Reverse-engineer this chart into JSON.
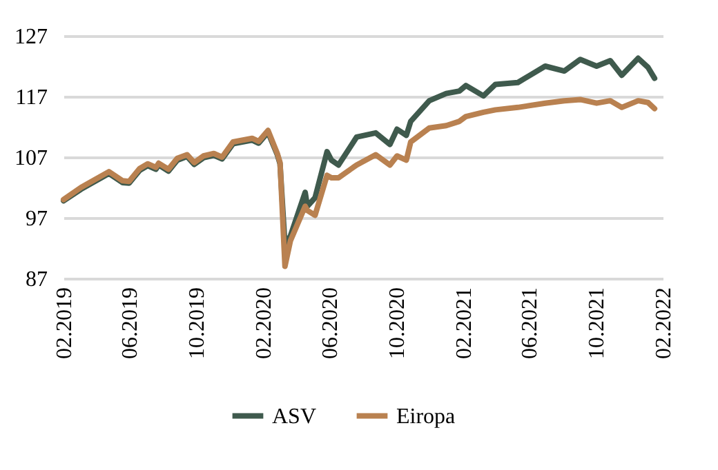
{
  "chart_data": {
    "type": "line",
    "x": [
      "2019-02-01",
      "2019-03-05",
      "2019-04-25",
      "2019-05-20",
      "2019-06-01",
      "2019-06-20",
      "2019-07-05",
      "2019-07-20",
      "2019-07-25",
      "2019-08-12",
      "2019-08-28",
      "2019-09-15",
      "2019-09-28",
      "2019-10-15",
      "2019-11-03",
      "2019-11-18",
      "2019-12-08",
      "2020-01-12",
      "2020-01-24",
      "2020-02-10",
      "2020-02-27",
      "2020-03-03",
      "2020-03-12",
      "2020-03-22",
      "2020-04-18",
      "2020-04-22",
      "2020-05-06",
      "2020-05-28",
      "2020-06-05",
      "2020-06-18",
      "2020-07-21",
      "2020-08-25",
      "2020-09-20",
      "2020-10-03",
      "2020-10-20",
      "2020-10-28",
      "2020-12-01",
      "2021-01-01",
      "2021-01-25",
      "2021-02-06",
      "2021-03-10",
      "2021-04-01",
      "2021-05-12",
      "2021-07-01",
      "2021-08-05",
      "2021-09-03",
      "2021-10-03",
      "2021-10-28",
      "2021-11-18",
      "2021-12-18",
      "2022-01-05",
      "2022-01-17"
    ],
    "series": [
      {
        "name": "ASV",
        "color": "#3f5a4d",
        "values": [
          99.8,
          101.7,
          104.3,
          102.8,
          102.7,
          104.8,
          105.6,
          105.0,
          105.7,
          104.7,
          106.5,
          107.1,
          105.8,
          106.9,
          107.3,
          106.7,
          109.2,
          109.8,
          109.3,
          111.1,
          107.4,
          105.9,
          92.5,
          94,
          101.2,
          98.9,
          100.3,
          107.9,
          106.5,
          105.7,
          110.3,
          111.0,
          109.1,
          111.6,
          110.6,
          112.9,
          116.3,
          117.5,
          117.9,
          118.8,
          117.1,
          119,
          119.3,
          122,
          121.2,
          123.1,
          122,
          122.9,
          120.5,
          123.3,
          121.8,
          120
        ]
      },
      {
        "name": "Eiropa",
        "color": "#b98150",
        "values": [
          100,
          102,
          104.6,
          103.1,
          103,
          105.1,
          105.9,
          105.3,
          106,
          105,
          106.8,
          107.4,
          106.1,
          107.2,
          107.6,
          107,
          109.5,
          110.1,
          109.6,
          111.4,
          107.6,
          106.1,
          89,
          93.2,
          98.9,
          98.2,
          97.4,
          104,
          103.6,
          103.6,
          105.7,
          107.4,
          105.7,
          107.2,
          106.5,
          109.5,
          111.8,
          112.2,
          112.9,
          113.7,
          114.4,
          114.8,
          115.2,
          115.9,
          116.3,
          116.5,
          115.9,
          116.3,
          115.2,
          116.3,
          116,
          115
        ]
      }
    ],
    "xlim": [
      "2019-02-01",
      "2022-02-01"
    ],
    "xticks": [
      {
        "value": "2019-02-01",
        "label": "02.2019"
      },
      {
        "value": "2019-06-01",
        "label": "06.2019"
      },
      {
        "value": "2019-10-01",
        "label": "10.2019"
      },
      {
        "value": "2020-02-01",
        "label": "02.2020"
      },
      {
        "value": "2020-06-01",
        "label": "06.2020"
      },
      {
        "value": "2020-10-01",
        "label": "10.2020"
      },
      {
        "value": "2021-02-01",
        "label": "02.2021"
      },
      {
        "value": "2021-06-01",
        "label": "06.2021"
      },
      {
        "value": "2021-10-01",
        "label": "10.2021"
      },
      {
        "value": "2022-02-01",
        "label": "02.2022"
      }
    ],
    "ylim": [
      87,
      127
    ],
    "yticks": [
      87,
      97,
      107,
      117,
      127
    ],
    "grid": "y",
    "legend": "bottom",
    "line_style": "solid",
    "marker": "none"
  }
}
